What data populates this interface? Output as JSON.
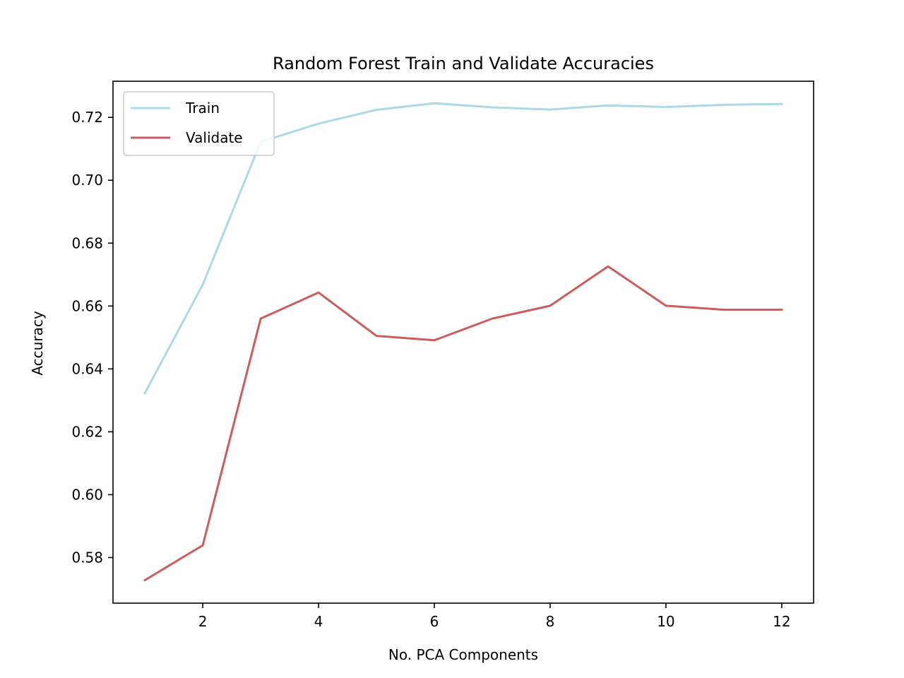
{
  "chart_data": {
    "type": "line",
    "title": "Random Forest Train and Validate Accuracies",
    "xlabel": "No. PCA Components",
    "ylabel": "Accuracy",
    "x": [
      1,
      2,
      3,
      4,
      5,
      6,
      7,
      8,
      9,
      10,
      11,
      12
    ],
    "xlim": [
      0.45,
      12.55
    ],
    "ylim": [
      0.5655,
      0.7315
    ],
    "xticks": [
      2,
      4,
      6,
      8,
      10,
      12
    ],
    "xtick_labels": [
      "2",
      "4",
      "6",
      "8",
      "10",
      "12"
    ],
    "yticks": [
      0.58,
      0.6,
      0.62,
      0.64,
      0.66,
      0.68,
      0.7,
      0.72
    ],
    "ytick_labels": [
      "0.58",
      "0.60",
      "0.62",
      "0.64",
      "0.66",
      "0.68",
      "0.70",
      "0.72"
    ],
    "series": [
      {
        "name": "Train",
        "color": "#add8e6",
        "values": [
          0.6323,
          0.6668,
          0.7122,
          0.718,
          0.7224,
          0.7245,
          0.7232,
          0.7225,
          0.7238,
          0.7233,
          0.724,
          0.7243
        ]
      },
      {
        "name": "Validate",
        "color": "#cd5c5c",
        "values": [
          0.5728,
          0.5839,
          0.656,
          0.6643,
          0.6505,
          0.6491,
          0.656,
          0.6601,
          0.6726,
          0.6601,
          0.6588,
          0.6588
        ]
      }
    ],
    "legend": "upper left",
    "grid": false
  }
}
